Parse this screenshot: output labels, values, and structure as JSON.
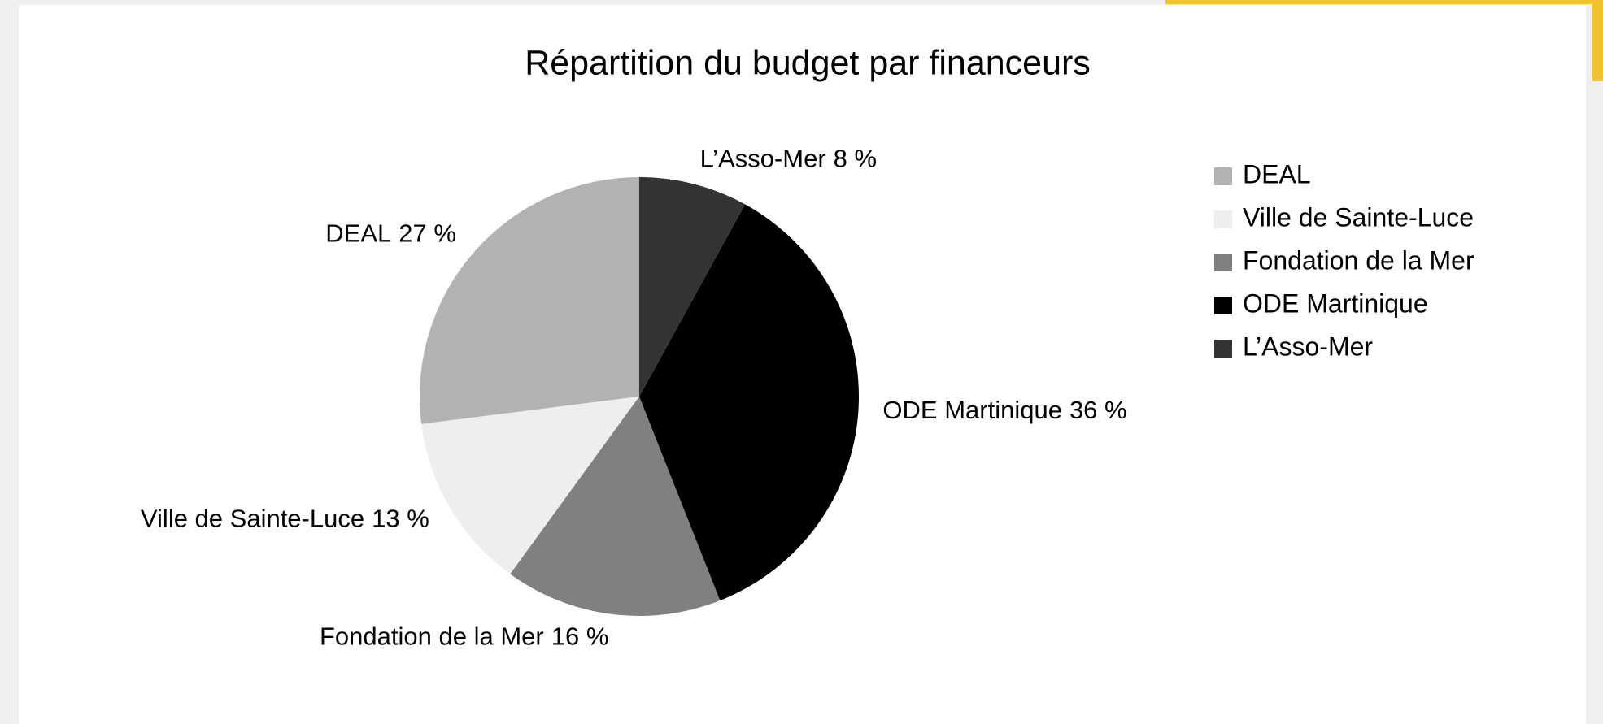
{
  "chart_data": {
    "type": "pie",
    "title": "Répartition du budget par financeurs",
    "categories": [
      "DEAL",
      "Ville de Sainte-Luce",
      "Fondation de la Mer",
      "ODE Martinique",
      "L’Asso-Mer"
    ],
    "values": [
      27,
      13,
      16,
      36,
      8
    ],
    "value_labels": [
      "27 %",
      "13 %",
      "16 %",
      "36 %",
      "8 %"
    ],
    "colors": [
      "#b2b2b2",
      "#eeeeee",
      "#808080",
      "#000000",
      "#333333"
    ],
    "legend": "right"
  }
}
